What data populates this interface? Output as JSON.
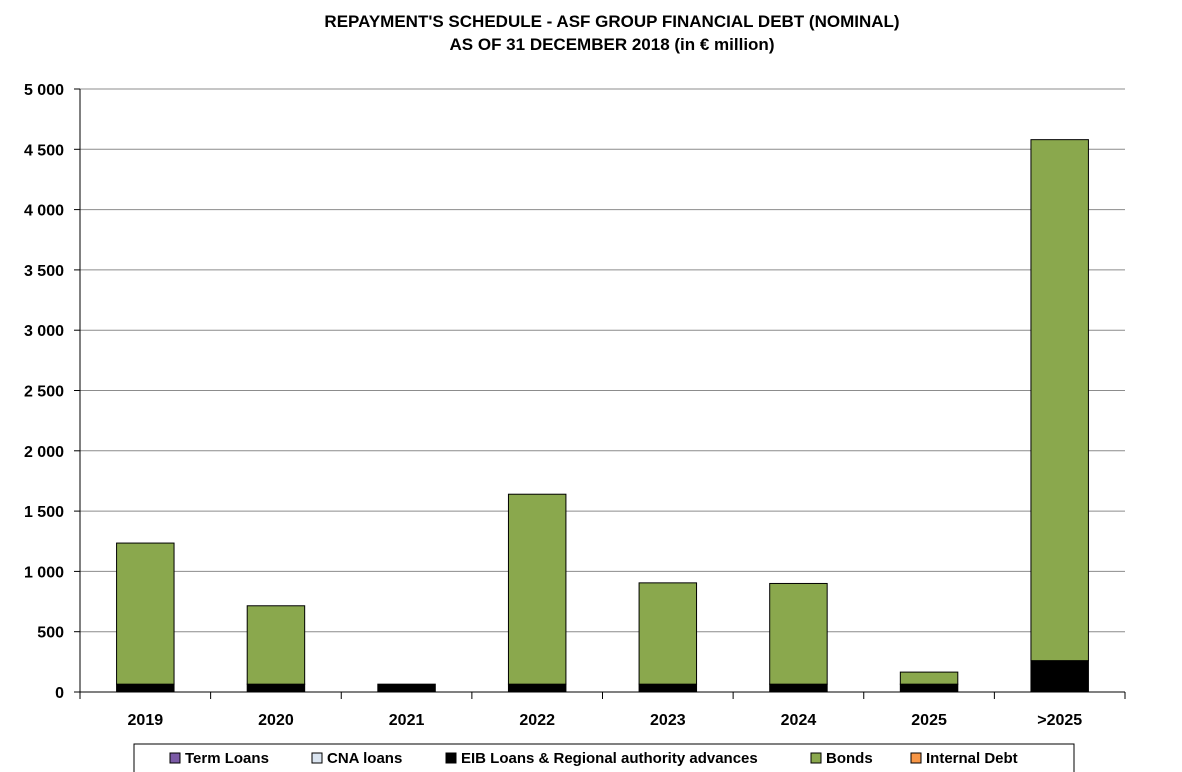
{
  "chart_data": {
    "type": "bar",
    "stacked": true,
    "title": "REPAYMENT'S SCHEDULE - ASF GROUP FINANCIAL DEBT (NOMINAL)",
    "subtitle": "AS OF 31 DECEMBER 2018 (in € million)",
    "categories": [
      "2019",
      "2020",
      "2021",
      "2022",
      "2023",
      "2024",
      "2025",
      ">2025"
    ],
    "ylim": [
      0,
      5000
    ],
    "yticks": [
      0,
      500,
      1000,
      1500,
      2000,
      2500,
      3000,
      3500,
      4000,
      4500,
      5000
    ],
    "ytick_labels": [
      "0",
      "500",
      "1 000",
      "1 500",
      "2 000",
      "2 500",
      "3 000",
      "3 500",
      "4 000",
      "4 500",
      "5 000"
    ],
    "grid": true,
    "legend_position": "bottom",
    "series": [
      {
        "name": "Term Loans",
        "color": "#7b5aa6",
        "values": [
          0,
          0,
          0,
          0,
          0,
          0,
          0,
          0
        ]
      },
      {
        "name": "CNA loans",
        "color": "#dbe5f1",
        "values": [
          0,
          0,
          0,
          0,
          0,
          0,
          0,
          0
        ]
      },
      {
        "name": "EIB Loans & Regional authority advances",
        "color": "#000000",
        "values": [
          65,
          65,
          65,
          65,
          65,
          65,
          65,
          260
        ]
      },
      {
        "name": "Bonds",
        "color": "#8aa84d",
        "values": [
          1170,
          650,
          0,
          1575,
          840,
          835,
          100,
          4320
        ]
      },
      {
        "name": "Internal Debt",
        "color": "#f79646",
        "values": [
          0,
          0,
          0,
          0,
          0,
          0,
          0,
          0
        ]
      }
    ]
  }
}
